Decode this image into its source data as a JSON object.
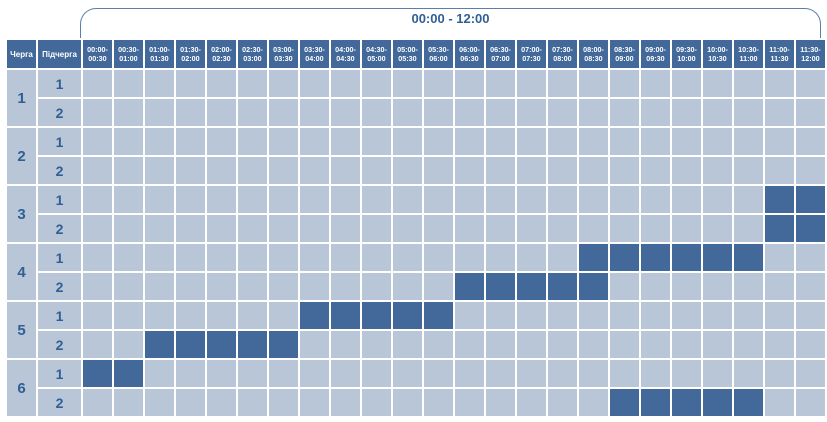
{
  "header": {
    "period": "00:00 - 12:00",
    "queue_label": "Черга",
    "subqueue_label": "Підчерга",
    "slots": [
      [
        "00:00-",
        "00:30"
      ],
      [
        "00:30-",
        "01:00"
      ],
      [
        "01:00-",
        "01:30"
      ],
      [
        "01:30-",
        "02:00"
      ],
      [
        "02:00-",
        "02:30"
      ],
      [
        "02:30-",
        "03:00"
      ],
      [
        "03:00-",
        "03:30"
      ],
      [
        "03:30-",
        "04:00"
      ],
      [
        "04:00-",
        "04:30"
      ],
      [
        "04:30-",
        "05:00"
      ],
      [
        "05:00-",
        "05:30"
      ],
      [
        "05:30-",
        "06:00"
      ],
      [
        "06:00-",
        "06:30"
      ],
      [
        "06:30-",
        "07:00"
      ],
      [
        "07:00-",
        "07:30"
      ],
      [
        "07:30-",
        "08:00"
      ],
      [
        "08:00-",
        "08:30"
      ],
      [
        "08:30-",
        "09:00"
      ],
      [
        "09:00-",
        "09:30"
      ],
      [
        "09:30-",
        "10:00"
      ],
      [
        "10:00-",
        "10:30"
      ],
      [
        "10:30-",
        "11:00"
      ],
      [
        "11:00-",
        "11:30"
      ],
      [
        "11:30-",
        "12:00"
      ]
    ]
  },
  "colors": {
    "outage": "#42699a",
    "no_outage": "#b8c6d8",
    "label_text": "#2f5f94"
  },
  "queues": [
    {
      "queue": "1",
      "subqueues": [
        {
          "sub": "1",
          "outage_slots": []
        },
        {
          "sub": "2",
          "outage_slots": []
        }
      ]
    },
    {
      "queue": "2",
      "subqueues": [
        {
          "sub": "1",
          "outage_slots": []
        },
        {
          "sub": "2",
          "outage_slots": []
        }
      ]
    },
    {
      "queue": "3",
      "subqueues": [
        {
          "sub": "1",
          "outage_slots": [
            22,
            23
          ]
        },
        {
          "sub": "2",
          "outage_slots": [
            22,
            23
          ]
        }
      ]
    },
    {
      "queue": "4",
      "subqueues": [
        {
          "sub": "1",
          "outage_slots": [
            16,
            17,
            18,
            19,
            20,
            21
          ]
        },
        {
          "sub": "2",
          "outage_slots": [
            12,
            13,
            14,
            15,
            16
          ]
        }
      ]
    },
    {
      "queue": "5",
      "subqueues": [
        {
          "sub": "1",
          "outage_slots": [
            7,
            8,
            9,
            10,
            11
          ]
        },
        {
          "sub": "2",
          "outage_slots": [
            2,
            3,
            4,
            5,
            6
          ]
        }
      ]
    },
    {
      "queue": "6",
      "subqueues": [
        {
          "sub": "1",
          "outage_slots": [
            0,
            1
          ]
        },
        {
          "sub": "2",
          "outage_slots": [
            17,
            18,
            19,
            20,
            21
          ]
        }
      ]
    }
  ]
}
